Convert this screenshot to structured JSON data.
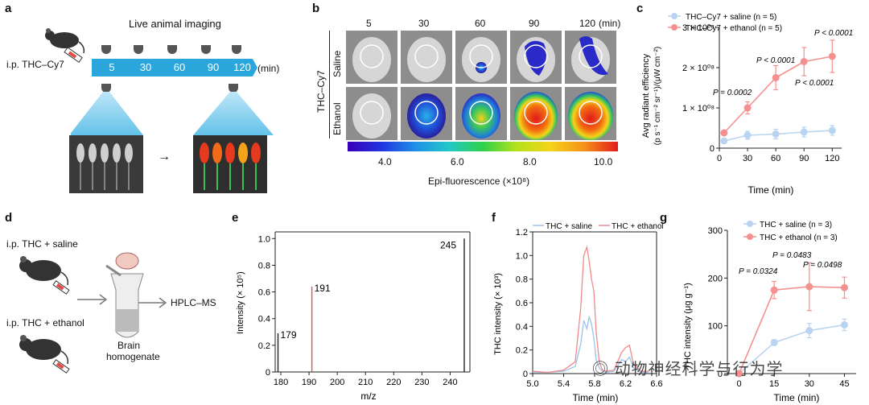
{
  "panel_labels": {
    "a": "a",
    "b": "b",
    "c": "c",
    "d": "d",
    "e": "e",
    "f": "f",
    "g": "g"
  },
  "panel_a": {
    "title": "Live animal imaging",
    "route": "i.p. THC–Cy7",
    "timepoints": [
      "5",
      "30",
      "60",
      "90",
      "120"
    ],
    "unit": "(min)",
    "arrow": "→"
  },
  "panel_b": {
    "timepoints": [
      "5",
      "30",
      "60",
      "90",
      "120"
    ],
    "unit": "(min)",
    "group_label": "THC–Cy7",
    "rows": [
      "Saline",
      "Ethanol"
    ],
    "colorbar_ticks": [
      "4.0",
      "6.0",
      "8.0",
      "10.0"
    ],
    "colorbar_label": "Epi-fluorescence (×10⁸)"
  },
  "panel_c": {
    "chart_data": {
      "type": "line",
      "x": [
        5,
        30,
        60,
        90,
        120
      ],
      "series": [
        {
          "name": "THC–Cy7 + saline (n = 5)",
          "values": [
            0.18,
            0.32,
            0.35,
            0.4,
            0.44
          ],
          "err": [
            0.03,
            0.1,
            0.12,
            0.12,
            0.12
          ],
          "color": "#b9d4f0"
        },
        {
          "name": "THC–Cy7 + ethanol (n = 5)",
          "values": [
            0.38,
            1.0,
            1.75,
            2.15,
            2.28
          ],
          "err": [
            0.05,
            0.15,
            0.3,
            0.35,
            0.4
          ],
          "color": "#f4908f"
        }
      ],
      "annotations": [
        "P = 0.0002",
        "P < 0.0001",
        "P < 0.0001",
        "P < 0.0001"
      ],
      "xlabel": "Time (min)",
      "ylabel_line1": "Avg radiant efficiency",
      "ylabel_line2": "(p s⁻¹ cm⁻² sr⁻¹)/(μW cm⁻²)",
      "yticks": [
        "0",
        "1 × 10⁰⁸",
        "2 × 10⁰⁸",
        "3 × 10⁰⁸"
      ],
      "ytick_values": [
        0,
        1,
        2,
        3
      ],
      "xticks": [
        "0",
        "30",
        "60",
        "90",
        "120"
      ],
      "xtick_values": [
        0,
        30,
        60,
        90,
        120
      ],
      "xlim": [
        0,
        130
      ],
      "ylim": [
        0,
        3
      ]
    }
  },
  "panel_d": {
    "group1": "i.p. THC + saline",
    "group2": "i.p. THC + ethanol",
    "tube_label1": "Brain",
    "tube_label2": "homogenate",
    "method": "HPLC–MS"
  },
  "panel_e": {
    "chart_data": {
      "type": "bar",
      "x": [
        179,
        191,
        245
      ],
      "values": [
        0.29,
        0.64,
        1.0
      ],
      "colors": [
        "#222222",
        "#d9534f",
        "#222222"
      ],
      "peak_labels": [
        "179",
        "191",
        "245"
      ],
      "xlabel": "m/z",
      "ylabel": "Intensity (× 10⁵)",
      "xticks": [
        "180",
        "190",
        "200",
        "210",
        "220",
        "230",
        "240"
      ],
      "xtick_values": [
        180,
        190,
        200,
        210,
        220,
        230,
        240
      ],
      "yticks": [
        "0",
        "0.2",
        "0.4",
        "0.6",
        "0.8",
        "1.0"
      ],
      "ytick_values": [
        0,
        0.2,
        0.4,
        0.6,
        0.8,
        1.0
      ],
      "xlim": [
        178,
        247
      ],
      "ylim": [
        0,
        1.05
      ]
    }
  },
  "panel_f": {
    "chart_data": {
      "type": "line",
      "series": [
        {
          "name": "THC + saline",
          "color": "#9cc3ea",
          "x": [
            5.0,
            5.2,
            5.4,
            5.55,
            5.62,
            5.66,
            5.7,
            5.73,
            5.76,
            5.79,
            5.82,
            5.86,
            5.9,
            5.95,
            6.05,
            6.15,
            6.2,
            6.25,
            6.3,
            6.4,
            6.5
          ],
          "values": [
            0.01,
            0.01,
            0.02,
            0.06,
            0.25,
            0.45,
            0.38,
            0.48,
            0.42,
            0.3,
            0.12,
            0.05,
            0.02,
            0.01,
            0.02,
            0.12,
            0.1,
            0.14,
            0.05,
            0.01,
            0.01
          ]
        },
        {
          "name": "THC + ethanol",
          "color": "#f08a8a",
          "x": [
            5.0,
            5.2,
            5.4,
            5.55,
            5.62,
            5.66,
            5.7,
            5.73,
            5.76,
            5.79,
            5.82,
            5.86,
            5.9,
            5.95,
            6.05,
            6.15,
            6.2,
            6.25,
            6.3,
            6.4,
            6.5
          ],
          "values": [
            0.02,
            0.01,
            0.03,
            0.1,
            0.55,
            1.0,
            1.07,
            0.95,
            0.8,
            0.7,
            0.35,
            0.1,
            0.03,
            0.02,
            0.03,
            0.18,
            0.22,
            0.24,
            0.08,
            0.02,
            0.02
          ]
        }
      ],
      "xlabel": "Time (min)",
      "ylabel": "THC intensity (× 10³)",
      "xticks": [
        "5.0",
        "5.4",
        "5.8",
        "6.2",
        "6.6"
      ],
      "xtick_values": [
        5.0,
        5.4,
        5.8,
        6.2,
        6.6
      ],
      "yticks": [
        "0",
        "0.2",
        "0.4",
        "0.6",
        "0.8",
        "1.0",
        "1.2"
      ],
      "ytick_values": [
        0,
        0.2,
        0.4,
        0.6,
        0.8,
        1.0,
        1.2
      ],
      "xlim": [
        5.0,
        6.6
      ],
      "ylim": [
        0,
        1.2
      ]
    }
  },
  "panel_g": {
    "chart_data": {
      "type": "line",
      "x": [
        0,
        15,
        30,
        45
      ],
      "series": [
        {
          "name": "THC + saline (n = 3)",
          "values": [
            0,
            65,
            90,
            102
          ],
          "err": [
            3,
            6,
            15,
            12
          ],
          "color": "#b9d4f0"
        },
        {
          "name": "THC + ethanol (n = 3)",
          "values": [
            0,
            175,
            182,
            180
          ],
          "err": [
            3,
            18,
            50,
            22
          ],
          "color": "#f4908f"
        }
      ],
      "annotations": [
        "P = 0.0324",
        "P = 0.0483",
        "P = 0.0498"
      ],
      "xlabel": "Time (min)",
      "ylabel": "THC intensity (μg g⁻¹)",
      "xticks": [
        "0",
        "15",
        "30",
        "45"
      ],
      "xtick_values": [
        0,
        15,
        30,
        45
      ],
      "yticks": [
        "0",
        "100",
        "200",
        "300"
      ],
      "ytick_values": [
        0,
        100,
        200,
        300
      ],
      "xlim": [
        -5,
        50
      ],
      "ylim": [
        0,
        300
      ]
    }
  },
  "watermark": "动物神经科学与行为学"
}
